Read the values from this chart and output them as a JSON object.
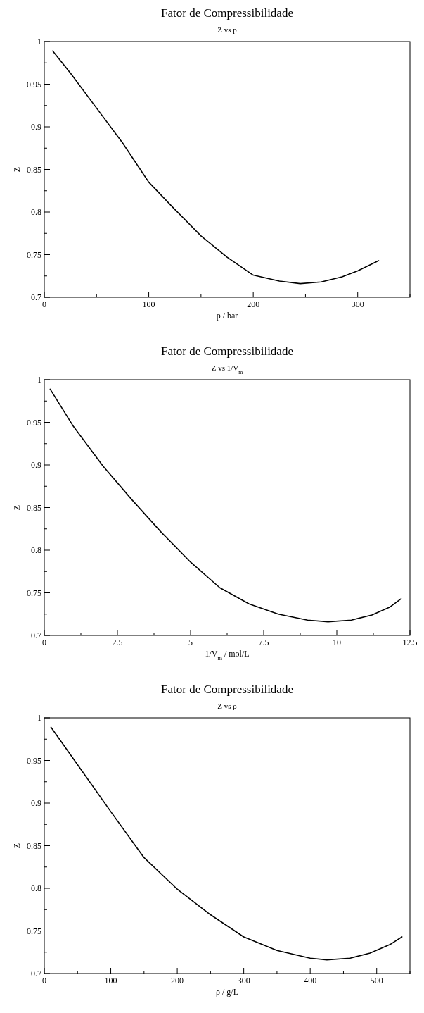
{
  "chart_data": [
    {
      "type": "line",
      "title": "Fator de Compressibilidade",
      "subtitle": "Z vs p",
      "xlabel": "p / bar",
      "ylabel": "Z",
      "xlim": [
        0,
        350
      ],
      "ylim": [
        0.7,
        1
      ],
      "xticks": [
        0,
        {
          "value": 50,
          "label": null
        },
        100,
        {
          "value": 150,
          "label": null
        },
        200,
        {
          "value": 250,
          "label": null
        },
        300,
        {
          "value": 350,
          "label": null
        }
      ],
      "yticks": [
        0.7,
        {
          "value": 0.725,
          "label": null
        },
        0.75,
        {
          "value": 0.775,
          "label": null
        },
        0.8,
        {
          "value": 0.825,
          "label": null
        },
        0.85,
        {
          "value": 0.875,
          "label": null
        },
        0.9,
        {
          "value": 0.925,
          "label": null
        },
        0.95,
        {
          "value": 0.975,
          "label": null
        },
        1
      ],
      "series": [
        {
          "color": "#000000",
          "x": [
            8,
            25,
            50,
            75,
            100,
            125,
            150,
            175,
            200,
            225,
            245,
            265,
            285,
            300,
            320
          ],
          "values": [
            0.989,
            0.963,
            0.922,
            0.881,
            0.835,
            0.803,
            0.772,
            0.747,
            0.726,
            0.719,
            0.716,
            0.718,
            0.724,
            0.731,
            0.743
          ]
        }
      ]
    },
    {
      "type": "line",
      "title": "Fator de Compressibilidade",
      "subtitle": "Z vs 1/V$_{m}$",
      "xlabel": "1/V$_{m}$ / mol/L",
      "ylabel": "Z",
      "xlim": [
        0,
        12.5
      ],
      "ylim": [
        0.7,
        1
      ],
      "xticks": [
        0,
        {
          "value": 1.25,
          "label": null
        },
        2.5,
        {
          "value": 3.75,
          "label": null
        },
        5,
        {
          "value": 6.25,
          "label": null
        },
        7.5,
        {
          "value": 8.75,
          "label": null
        },
        10,
        {
          "value": 11.25,
          "label": null
        },
        12.5
      ],
      "yticks": [
        0.7,
        {
          "value": 0.725,
          "label": null
        },
        0.75,
        {
          "value": 0.775,
          "label": null
        },
        0.8,
        {
          "value": 0.825,
          "label": null
        },
        0.85,
        {
          "value": 0.875,
          "label": null
        },
        0.9,
        {
          "value": 0.925,
          "label": null
        },
        0.95,
        {
          "value": 0.975,
          "label": null
        },
        1
      ],
      "series": [
        {
          "color": "#000000",
          "x": [
            0.2,
            1,
            2,
            3,
            4,
            5,
            6,
            7,
            8,
            9,
            9.7,
            10.5,
            11.2,
            11.8,
            12.2
          ],
          "values": [
            0.989,
            0.945,
            0.899,
            0.859,
            0.821,
            0.786,
            0.756,
            0.737,
            0.725,
            0.718,
            0.716,
            0.718,
            0.724,
            0.733,
            0.743
          ]
        }
      ]
    },
    {
      "type": "line",
      "title": "Fator de Compressibilidade",
      "subtitle": "Z vs ρ",
      "xlabel": "ρ / g/L",
      "ylabel": "Z",
      "xlim": [
        0,
        550
      ],
      "ylim": [
        0.7,
        1
      ],
      "xticks": [
        0,
        {
          "value": 50,
          "label": null
        },
        100,
        {
          "value": 150,
          "label": null
        },
        200,
        {
          "value": 250,
          "label": null
        },
        300,
        {
          "value": 350,
          "label": null
        },
        400,
        {
          "value": 450,
          "label": null
        },
        500,
        {
          "value": 550,
          "label": null
        }
      ],
      "yticks": [
        0.7,
        {
          "value": 0.725,
          "label": null
        },
        0.75,
        {
          "value": 0.775,
          "label": null
        },
        0.8,
        {
          "value": 0.825,
          "label": null
        },
        0.85,
        {
          "value": 0.875,
          "label": null
        },
        0.9,
        {
          "value": 0.925,
          "label": null
        },
        0.95,
        {
          "value": 0.975,
          "label": null
        },
        1
      ],
      "series": [
        {
          "color": "#000000",
          "x": [
            10,
            50,
            100,
            150,
            200,
            250,
            300,
            350,
            400,
            425,
            460,
            490,
            520,
            538
          ],
          "values": [
            0.989,
            0.945,
            0.89,
            0.836,
            0.799,
            0.769,
            0.743,
            0.727,
            0.718,
            0.716,
            0.718,
            0.724,
            0.734,
            0.743
          ]
        }
      ]
    }
  ]
}
